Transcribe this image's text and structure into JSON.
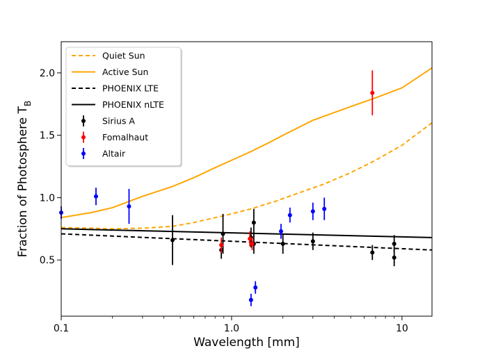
{
  "chart_data": {
    "type": "scatter",
    "xlabel": "Wavelength [mm]",
    "ylabel": "Fraction of Photosphere T",
    "ylabel_subscript": "B",
    "x_scale": "log",
    "xlim": [
      0.1,
      15
    ],
    "ylim": [
      0.05,
      2.25
    ],
    "x_ticks": [
      {
        "value": 0.1,
        "label": "0.1"
      },
      {
        "value": 1,
        "label": "1.0"
      },
      {
        "value": 10,
        "label": "10"
      }
    ],
    "y_ticks": [
      {
        "value": 0.5,
        "label": "0.5"
      },
      {
        "value": 1.0,
        "label": "1.0"
      },
      {
        "value": 1.5,
        "label": "1.5"
      },
      {
        "value": 2.0,
        "label": "2.0"
      }
    ],
    "legend_position": "top-left",
    "lines": [
      {
        "name": "Quiet Sun",
        "color": "#ffa500",
        "style": "dashed",
        "x": [
          0.1,
          0.15,
          0.2,
          0.3,
          0.45,
          0.6,
          0.8,
          1.0,
          1.3,
          1.8,
          2.5,
          3.5,
          5.0,
          7.0,
          10.0,
          15.0
        ],
        "y": [
          0.76,
          0.755,
          0.75,
          0.755,
          0.77,
          0.8,
          0.84,
          0.87,
          0.91,
          0.97,
          1.04,
          1.11,
          1.2,
          1.3,
          1.42,
          1.6
        ]
      },
      {
        "name": "Active Sun",
        "color": "#ffa500",
        "style": "solid",
        "x": [
          0.1,
          0.15,
          0.2,
          0.3,
          0.45,
          0.6,
          0.8,
          1.0,
          1.3,
          1.6,
          2.0,
          3.0,
          5.0,
          7.0,
          10.0,
          15.0
        ],
        "y": [
          0.84,
          0.88,
          0.92,
          1.01,
          1.09,
          1.16,
          1.24,
          1.3,
          1.37,
          1.43,
          1.5,
          1.62,
          1.73,
          1.8,
          1.88,
          2.04
        ]
      },
      {
        "name": "PHOENIX LTE",
        "color": "#000000",
        "style": "dashed",
        "x": [
          0.1,
          15.0
        ],
        "y": [
          0.71,
          0.58
        ]
      },
      {
        "name": "PHOENIX nLTE",
        "color": "#000000",
        "style": "solid",
        "x": [
          0.1,
          15.0
        ],
        "y": [
          0.75,
          0.68
        ]
      }
    ],
    "series": [
      {
        "name": "Sirius A",
        "color": "#000000",
        "points": [
          {
            "x": 0.45,
            "y": 0.66,
            "err": 0.2
          },
          {
            "x": 0.87,
            "y": 0.58,
            "err": 0.07
          },
          {
            "x": 0.89,
            "y": 0.71,
            "err": 0.16
          },
          {
            "x": 1.3,
            "y": 0.68,
            "err": 0.08
          },
          {
            "x": 1.35,
            "y": 0.8,
            "err": 0.11
          },
          {
            "x": 1.35,
            "y": 0.63,
            "err": 0.08
          },
          {
            "x": 2.0,
            "y": 0.63,
            "err": 0.08
          },
          {
            "x": 3.0,
            "y": 0.65,
            "err": 0.07
          },
          {
            "x": 6.7,
            "y": 0.56,
            "err": 0.06
          },
          {
            "x": 9.0,
            "y": 0.63,
            "err": 0.07
          },
          {
            "x": 9.0,
            "y": 0.52,
            "err": 0.07
          }
        ]
      },
      {
        "name": "Fomalhaut",
        "color": "#ff0000",
        "points": [
          {
            "x": 0.87,
            "y": 0.62,
            "err": 0.06
          },
          {
            "x": 1.28,
            "y": 0.67,
            "err": 0.06
          },
          {
            "x": 1.32,
            "y": 0.63,
            "err": 0.05
          },
          {
            "x": 6.7,
            "y": 1.84,
            "err": 0.18
          }
        ]
      },
      {
        "name": "Altair",
        "color": "#0000ff",
        "points": [
          {
            "x": 0.1,
            "y": 0.88,
            "err": 0.05
          },
          {
            "x": 0.16,
            "y": 1.01,
            "err": 0.07
          },
          {
            "x": 0.25,
            "y": 0.93,
            "err": 0.14
          },
          {
            "x": 1.3,
            "y": 0.18,
            "err": 0.05
          },
          {
            "x": 1.38,
            "y": 0.28,
            "err": 0.05
          },
          {
            "x": 1.95,
            "y": 0.73,
            "err": 0.06
          },
          {
            "x": 2.2,
            "y": 0.86,
            "err": 0.06
          },
          {
            "x": 3.0,
            "y": 0.89,
            "err": 0.07
          },
          {
            "x": 3.5,
            "y": 0.91,
            "err": 0.09
          }
        ]
      }
    ],
    "legend": [
      {
        "label": "Quiet Sun",
        "kind": "line",
        "color": "#ffa500",
        "style": "dashed"
      },
      {
        "label": "Active Sun",
        "kind": "line",
        "color": "#ffa500",
        "style": "solid"
      },
      {
        "label": "PHOENIX LTE",
        "kind": "line",
        "color": "#000000",
        "style": "dashed"
      },
      {
        "label": "PHOENIX nLTE",
        "kind": "line",
        "color": "#000000",
        "style": "solid"
      },
      {
        "label": "Sirius A",
        "kind": "errorbar",
        "color": "#000000"
      },
      {
        "label": "Fomalhaut",
        "kind": "errorbar",
        "color": "#ff0000"
      },
      {
        "label": "Altair",
        "kind": "errorbar",
        "color": "#0000ff"
      }
    ]
  }
}
